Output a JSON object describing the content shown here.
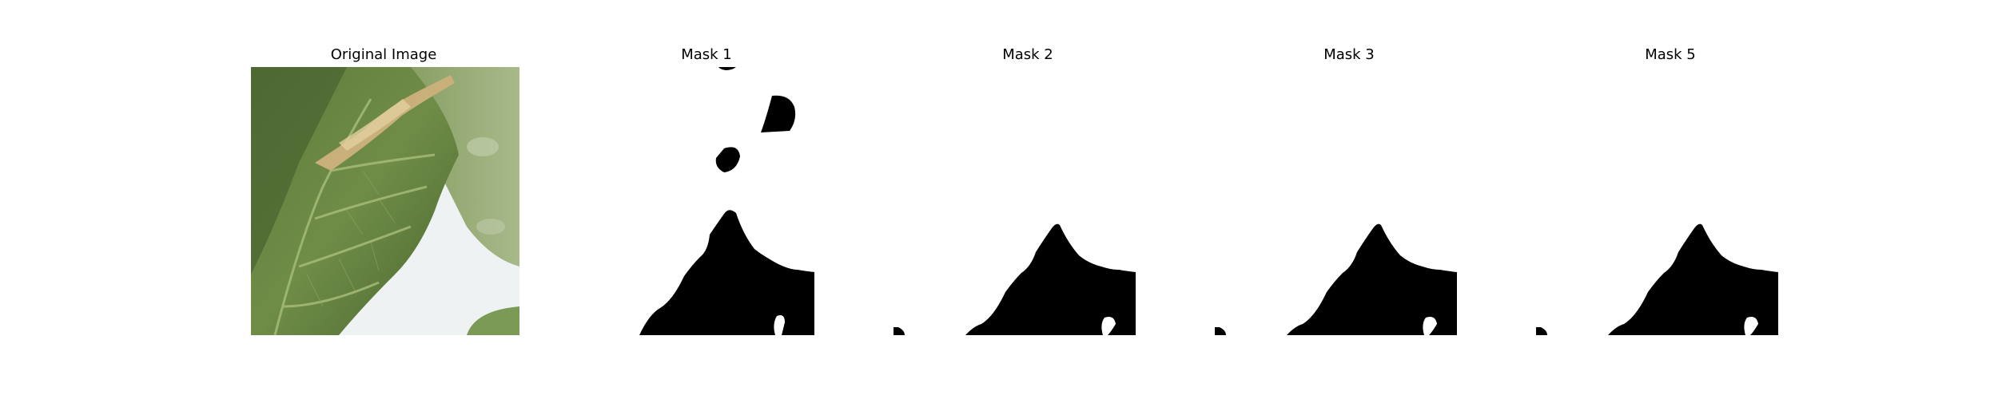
{
  "panels": [
    {
      "title": "Original Image",
      "kind": "photo"
    },
    {
      "title": "Mask 1",
      "kind": "mask"
    },
    {
      "title": "Mask 2",
      "kind": "mask"
    },
    {
      "title": "Mask 3",
      "kind": "mask"
    },
    {
      "title": "Mask 5",
      "kind": "mask"
    }
  ],
  "colors": {
    "mask_fg": "#000000",
    "mask_bg": "#ffffff",
    "leaf_dark": "#3f5a2a",
    "leaf_mid": "#6d8a45",
    "leaf_light": "#9fb66a",
    "sky": "#eef2f3",
    "stem": "#c9b07a"
  }
}
